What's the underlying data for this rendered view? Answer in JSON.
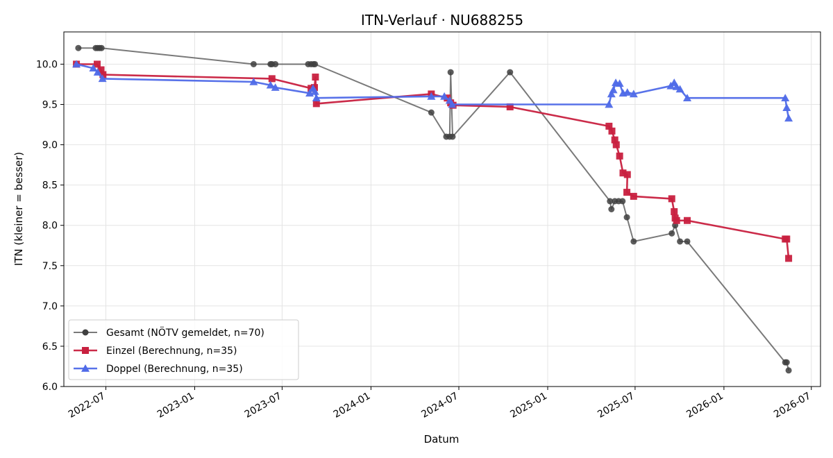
{
  "chart_data": {
    "type": "line",
    "title": "ITN-Verlauf · NU688255",
    "xlabel": "Datum",
    "ylabel": "ITN  (kleiner = besser)",
    "ylim": [
      6.0,
      10.4
    ],
    "xlim": [
      "2022-04-05",
      "2026-07-20"
    ],
    "grid": true,
    "legend_position": "lower-left",
    "y_ticks": [
      "6.0",
      "6.5",
      "7.0",
      "7.5",
      "8.0",
      "8.5",
      "9.0",
      "9.5",
      "10.0"
    ],
    "x_ticks": [
      "2022-07",
      "2023-01",
      "2023-07",
      "2024-01",
      "2024-07",
      "2025-01",
      "2025-07",
      "2026-01",
      "2026-07"
    ],
    "series": [
      {
        "name": "Gesamt (NÖTV gemeldet, n=70)",
        "color": "#404040",
        "marker": "circle",
        "points": [
          [
            "2022-05-05",
            10.2
          ],
          [
            "2022-06-10",
            10.2
          ],
          [
            "2022-06-14",
            10.2
          ],
          [
            "2022-06-18",
            10.2
          ],
          [
            "2022-06-22",
            10.2
          ],
          [
            "2023-05-03",
            10.0
          ],
          [
            "2023-06-07",
            10.0
          ],
          [
            "2023-06-10",
            10.0
          ],
          [
            "2023-06-17",
            10.0
          ],
          [
            "2023-08-24",
            10.0
          ],
          [
            "2023-08-30",
            10.0
          ],
          [
            "2023-09-04",
            10.0
          ],
          [
            "2023-09-07",
            10.0
          ],
          [
            "2024-05-05",
            9.4
          ],
          [
            "2024-06-05",
            9.1
          ],
          [
            "2024-06-12",
            9.1
          ],
          [
            "2024-06-14",
            9.9
          ],
          [
            "2024-06-18",
            9.1
          ],
          [
            "2024-10-15",
            9.9
          ],
          [
            "2025-05-10",
            8.3
          ],
          [
            "2025-05-13",
            8.2
          ],
          [
            "2025-05-20",
            8.3
          ],
          [
            "2025-05-28",
            8.3
          ],
          [
            "2025-06-05",
            8.3
          ],
          [
            "2025-06-14",
            8.1
          ],
          [
            "2025-06-28",
            7.8
          ],
          [
            "2025-09-15",
            7.9
          ],
          [
            "2025-09-22",
            8.0
          ],
          [
            "2025-10-02",
            7.8
          ],
          [
            "2025-10-17",
            7.8
          ],
          [
            "2026-05-08",
            6.3
          ],
          [
            "2026-05-11",
            6.3
          ],
          [
            "2026-05-15",
            6.2
          ]
        ]
      },
      {
        "name": "Einzel (Berechnung, n=35)",
        "color": "#c8203f",
        "marker": "square",
        "points": [
          [
            "2022-05-01",
            10.0
          ],
          [
            "2022-06-13",
            10.0
          ],
          [
            "2022-06-21",
            9.93
          ],
          [
            "2022-06-25",
            9.87
          ],
          [
            "2023-06-10",
            9.82
          ],
          [
            "2023-08-30",
            9.7
          ],
          [
            "2023-09-06",
            9.71
          ],
          [
            "2023-09-08",
            9.84
          ],
          [
            "2023-09-10",
            9.51
          ],
          [
            "2024-05-05",
            9.63
          ],
          [
            "2024-06-07",
            9.58
          ],
          [
            "2024-06-14",
            9.52
          ],
          [
            "2024-06-19",
            9.49
          ],
          [
            "2024-10-15",
            9.47
          ],
          [
            "2025-05-08",
            9.23
          ],
          [
            "2025-05-14",
            9.17
          ],
          [
            "2025-05-20",
            9.06
          ],
          [
            "2025-05-23",
            9.0
          ],
          [
            "2025-05-30",
            8.86
          ],
          [
            "2025-06-06",
            8.65
          ],
          [
            "2025-06-15",
            8.63
          ],
          [
            "2025-06-14",
            8.41
          ],
          [
            "2025-06-28",
            8.36
          ],
          [
            "2025-09-15",
            8.33
          ],
          [
            "2025-09-20",
            8.17
          ],
          [
            "2025-09-22",
            8.09
          ],
          [
            "2025-09-25",
            8.06
          ],
          [
            "2025-10-17",
            8.06
          ],
          [
            "2026-05-08",
            7.83
          ],
          [
            "2026-05-11",
            7.83
          ],
          [
            "2026-05-15",
            7.59
          ]
        ]
      },
      {
        "name": "Doppel (Berechnung, n=35)",
        "color": "#4f6ae8",
        "marker": "triangle",
        "points": [
          [
            "2022-05-01",
            10.0
          ],
          [
            "2022-06-05",
            9.95
          ],
          [
            "2022-06-14",
            9.9
          ],
          [
            "2022-06-24",
            9.82
          ],
          [
            "2023-05-03",
            9.78
          ],
          [
            "2023-06-07",
            9.74
          ],
          [
            "2023-06-17",
            9.71
          ],
          [
            "2023-08-27",
            9.64
          ],
          [
            "2023-09-03",
            9.7
          ],
          [
            "2023-09-07",
            9.66
          ],
          [
            "2023-09-10",
            9.58
          ],
          [
            "2024-05-05",
            9.6
          ],
          [
            "2024-06-01",
            9.6
          ],
          [
            "2024-06-12",
            9.55
          ],
          [
            "2024-06-17",
            9.5
          ],
          [
            "2025-05-08",
            9.5
          ],
          [
            "2025-05-13",
            9.63
          ],
          [
            "2025-05-17",
            9.68
          ],
          [
            "2025-05-22",
            9.77
          ],
          [
            "2025-05-30",
            9.76
          ],
          [
            "2025-06-06",
            9.64
          ],
          [
            "2025-06-15",
            9.65
          ],
          [
            "2025-06-28",
            9.63
          ],
          [
            "2025-09-13",
            9.73
          ],
          [
            "2025-09-20",
            9.77
          ],
          [
            "2025-09-25",
            9.72
          ],
          [
            "2025-10-02",
            9.69
          ],
          [
            "2025-10-17",
            9.58
          ],
          [
            "2026-05-08",
            9.58
          ],
          [
            "2026-05-11",
            9.46
          ],
          [
            "2026-05-15",
            9.33
          ]
        ]
      }
    ]
  }
}
